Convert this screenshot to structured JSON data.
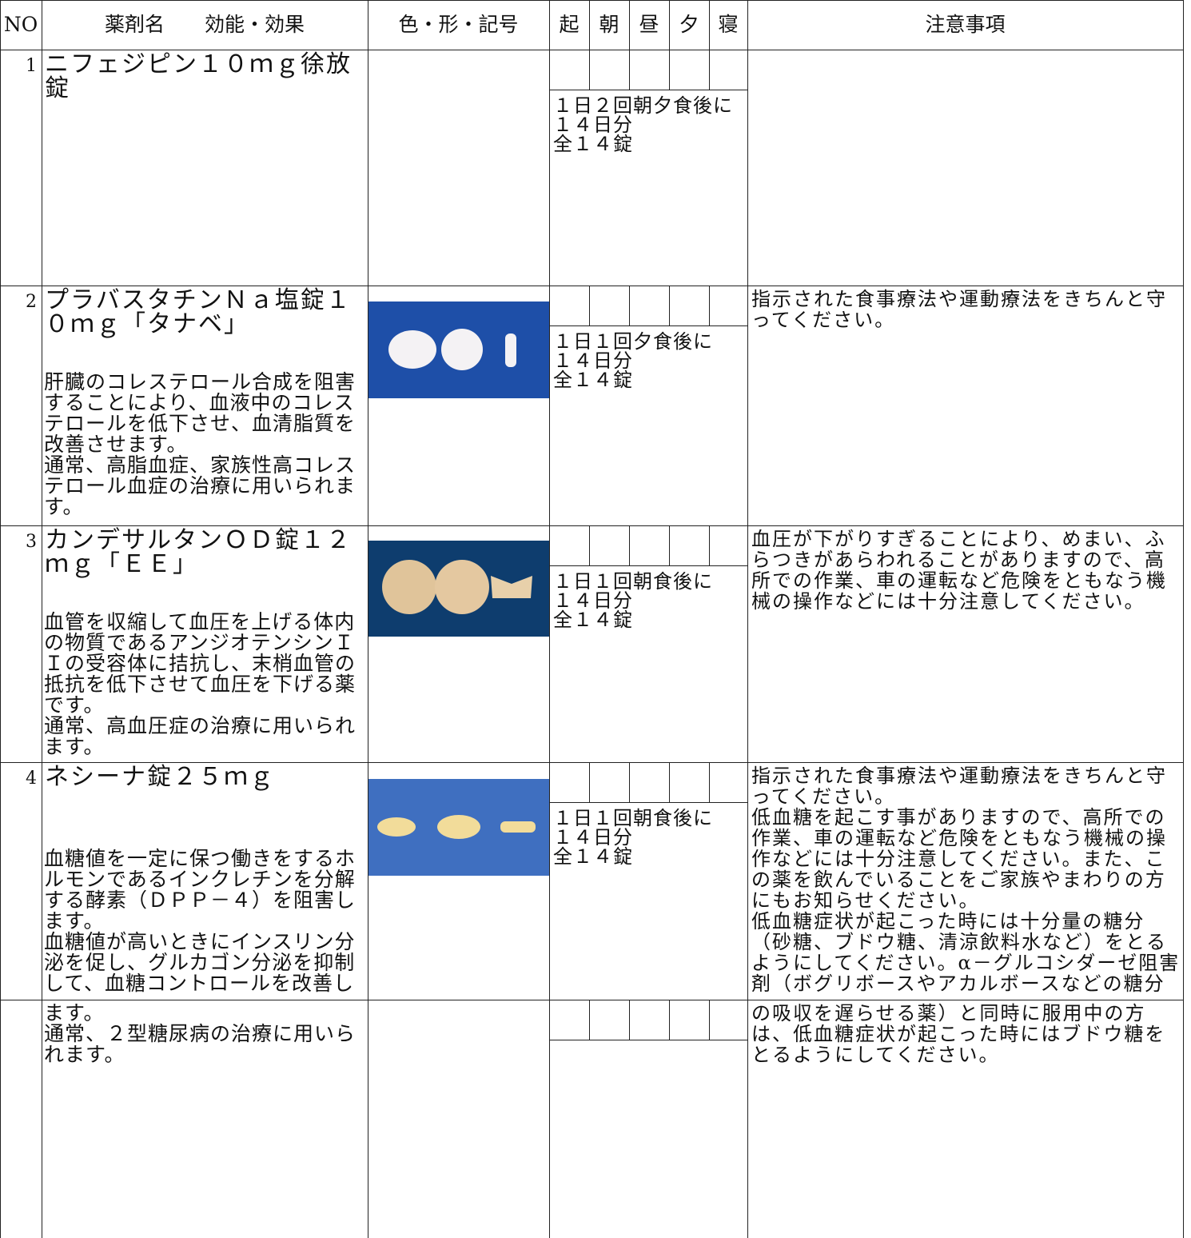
{
  "header": {
    "no": "NO",
    "name": "薬剤名　　効能・効果",
    "image": "色・形・記号",
    "times": [
      "起",
      "朝",
      "昼",
      "夕",
      "寝"
    ],
    "notes": "注意事項"
  },
  "rows": [
    {
      "no": "1",
      "name": "ニフェジピン１０ｍｇ徐放錠",
      "dosage": [
        "１日２回朝夕食後に",
        "１４日分",
        "全１４錠"
      ]
    },
    {
      "no": "2",
      "name": "プラバスタチンＮａ塩錠１０ｍｇ「タナベ」",
      "effect": [
        "肝臓のコレステロール合成を阻害することにより、血液中のコレステロールを低下させ、血清脂質を改善させます。",
        "通常、高脂血症、家族性高コレステロール血症の治療に用いられます。"
      ],
      "dosage": [
        "１日１回夕食後に",
        "１４日分",
        "全１４錠"
      ],
      "notes": [
        "指示された食事療法や運動療法をきちんと守ってください。"
      ]
    },
    {
      "no": "3",
      "name": "カンデサルタンＯＤ錠１２ｍｇ「ＥＥ」",
      "effect": [
        "血管を収縮して血圧を上げる体内の物質であるアンジオテンシンＩＩの受容体に拮抗し、末梢血管の抵抗を低下させて血圧を下げる薬です。",
        "通常、高血圧症の治療に用いられます。"
      ],
      "dosage": [
        "１日１回朝食後に",
        "１４日分",
        "全１４錠"
      ],
      "notes": [
        "血圧が下がりすぎることにより、めまい、ふらつきがあらわれることがありますので、高所での作業、車の運転など危険をともなう機械の操作などには十分注意してください。"
      ]
    },
    {
      "no": "4",
      "name": "ネシーナ錠２５ｍｇ",
      "effect": [
        "血糖値を一定に保つ働きをするホルモンであるインクレチンを分解する酵素（ＤＰＰ－４）を阻害します。",
        "血糖値が高いときにインスリン分泌を促し、グルカゴン分泌を抑制して、血糖コントロールを改善し"
      ],
      "dosage": [
        "１日１回朝食後に",
        "１４日分",
        "全１４錠"
      ],
      "notes": [
        "指示された食事療法や運動療法をきちんと守ってください。",
        "低血糖を起こす事がありますので、高所での作業、車の運転など危険をともなう機械の操作などには十分注意してください。また、この薬を飲んでいることをご家族やまわりの方にもお知らせください。",
        "低血糖症状が起こった時には十分量の糖分（砂糖、ブドウ糖、清涼飲料水など）をとるようにしてください。α－グルコシダーゼ阻害剤（ボグリボースやアカルボースなどの糖分"
      ]
    },
    {
      "effect": [
        "ます。",
        "通常、２型糖尿病の治療に用いられます。"
      ],
      "notes": [
        "の吸収を遅らせる薬）と同時に服用中の方は、低血糖症状が起こった時にはブドウ糖をとるようにしてください。"
      ]
    }
  ]
}
